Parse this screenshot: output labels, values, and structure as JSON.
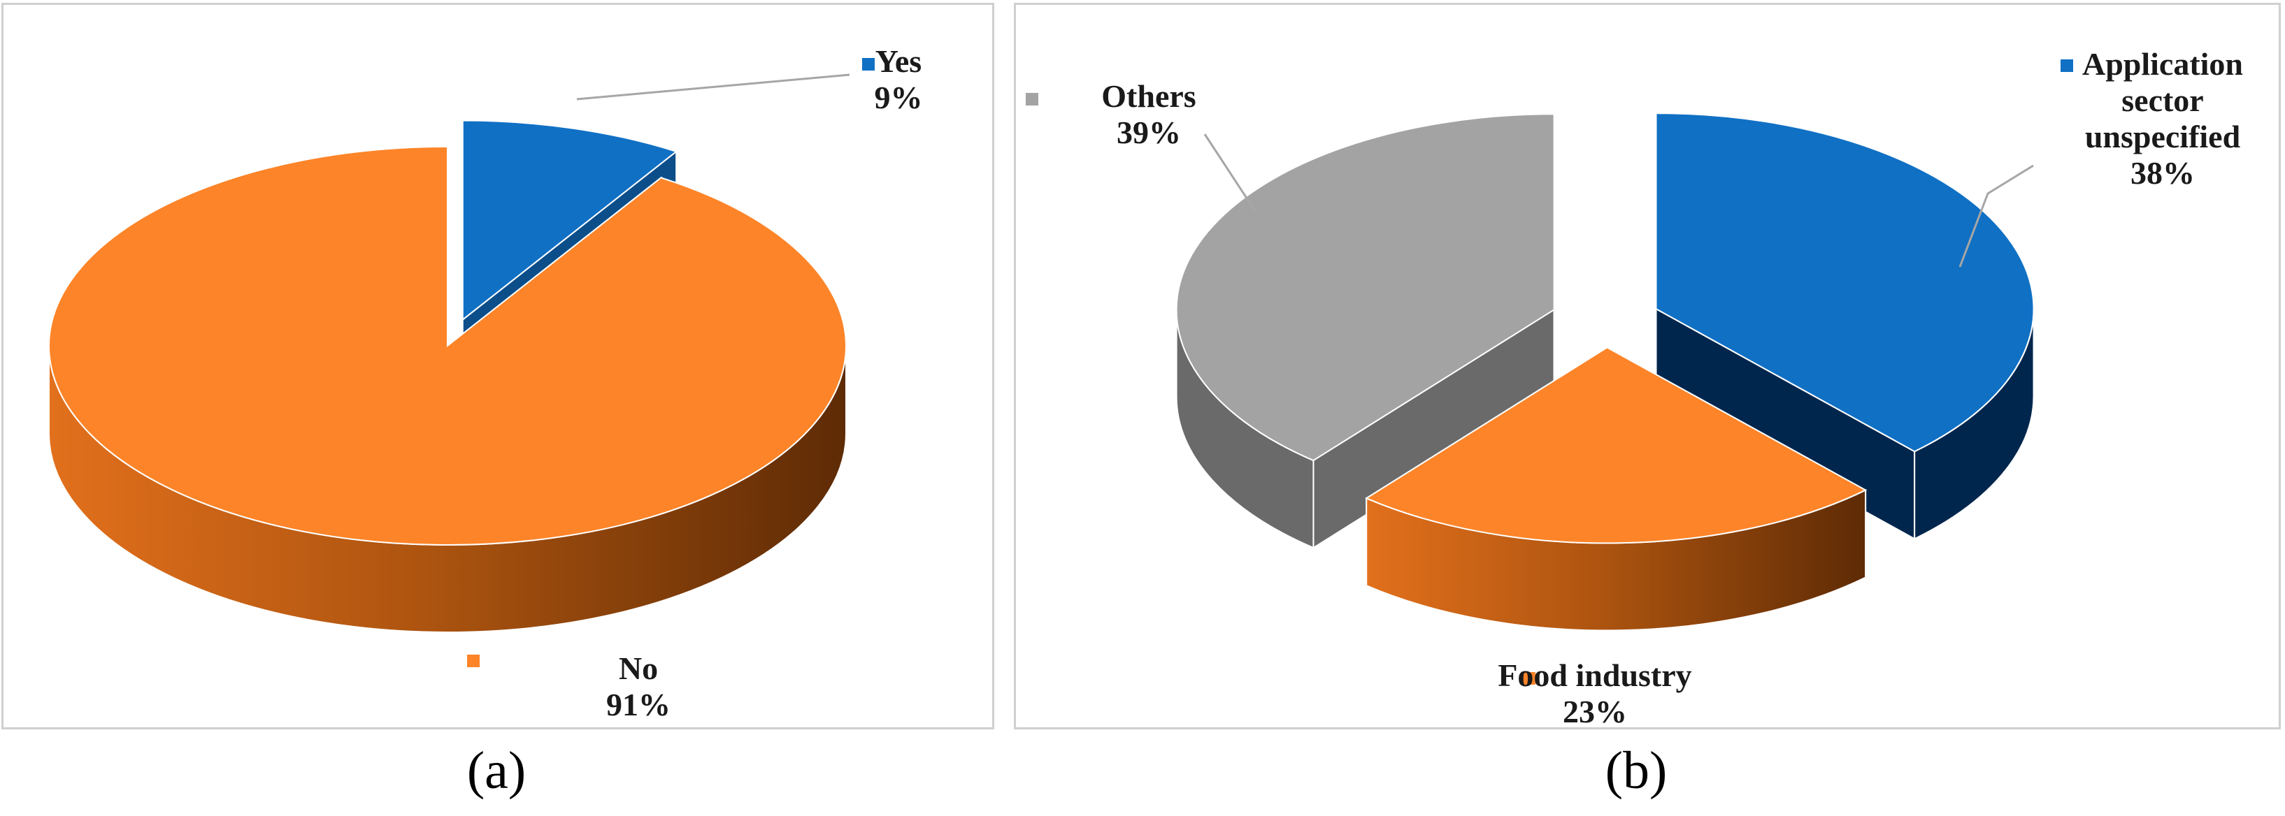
{
  "chart_data": [
    {
      "type": "pie",
      "panel": "(a)",
      "slices": [
        {
          "label": "Yes",
          "percent": "9%",
          "value": 9,
          "color": "#1070c4",
          "side": "#0b4e8a",
          "exploded": true
        },
        {
          "label": "No",
          "percent": "91%",
          "value": 91,
          "color": "#fd8428",
          "side": "#9a4a12",
          "exploded": false
        }
      ]
    },
    {
      "type": "pie",
      "panel": "(b)",
      "slices": [
        {
          "label": "Application\nsector\nunspecified",
          "percent": "38%",
          "value": 38,
          "color": "#1070c4",
          "side": "#00264d",
          "exploded": true
        },
        {
          "label": "Food industry",
          "percent": "23%",
          "value": 23,
          "color": "#fd8428",
          "side": "#9a4a12",
          "exploded": true
        },
        {
          "label": "Others",
          "percent": "39%",
          "value": 39,
          "color": "#a3a3a3",
          "side": "#6a6a6a",
          "exploded": true
        }
      ]
    }
  ]
}
